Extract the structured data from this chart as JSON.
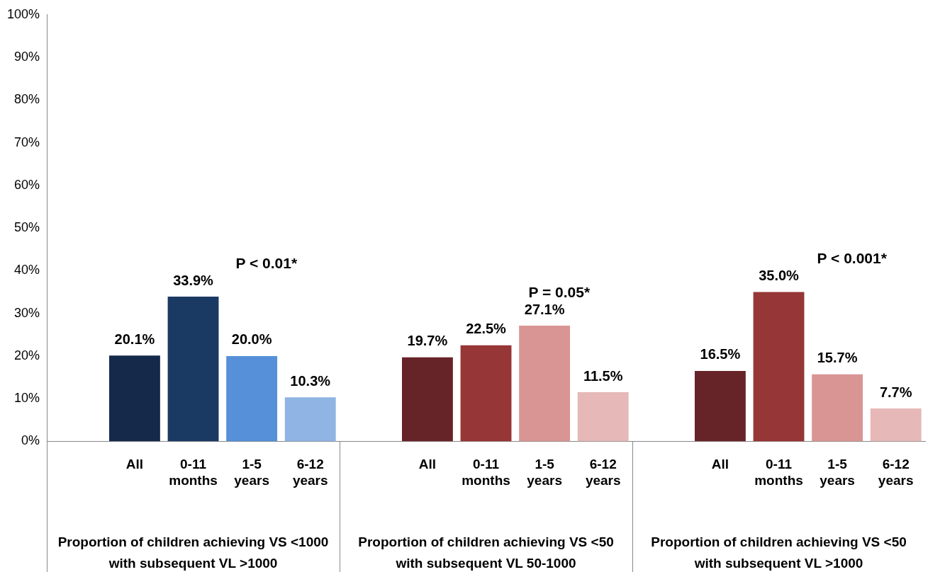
{
  "chart_data": {
    "type": "bar",
    "categories": [
      null,
      "All",
      "0-11 months",
      "1-5 years",
      "6-12 years",
      null,
      "All",
      "0-11 months",
      "1-5 years",
      "6-12 years",
      null,
      "All",
      "0-11 months",
      "1-5 years",
      "6-12 years"
    ],
    "values": [
      null,
      20.1,
      33.9,
      20.0,
      10.3,
      null,
      19.7,
      22.5,
      27.1,
      11.5,
      null,
      16.5,
      35.0,
      15.7,
      7.7
    ],
    "colors": [
      "#ffffff",
      "#15294a",
      "#1b3a63",
      "#5590d8",
      "#90b4e3",
      "#ffffff",
      "#672428",
      "#963636",
      "#d99594",
      "#e6b8b7",
      "#ffffff",
      "#672428",
      "#963636",
      "#d99594",
      "#e6b8b7"
    ],
    "value_labels": [
      null,
      "20.1%",
      "33.9%",
      "20.0%",
      "10.3%",
      null,
      "19.7%",
      "22.5%",
      "27.1%",
      "11.5%",
      null,
      "16.5%",
      "35.0%",
      "15.7%",
      "7.7%"
    ],
    "ylim": [
      0,
      100
    ],
    "yticks": [
      {
        "value": 0,
        "label": "0%"
      },
      {
        "value": 10,
        "label": "10%"
      },
      {
        "value": 20,
        "label": "20%"
      },
      {
        "value": 30,
        "label": "30%"
      },
      {
        "value": 40,
        "label": "40%"
      },
      {
        "value": 50,
        "label": "50%"
      },
      {
        "value": 60,
        "label": "60%"
      },
      {
        "value": 70,
        "label": "70%"
      },
      {
        "value": 80,
        "label": "80%"
      },
      {
        "value": 90,
        "label": "90%"
      },
      {
        "value": 100,
        "label": "100%"
      }
    ],
    "annotations": [
      "Proportion of children achieving VS <1000 with subsequent VL >1000",
      "Proportion of children achieving VS <50 with subsequent VL 50-1000",
      "Proportion of children achieving VS <50 with subsequent VL >1000",
      "P < 0.01*",
      "P = 0.05*",
      "P < 0.001*"
    ],
    "grid": false,
    "legend": false
  }
}
